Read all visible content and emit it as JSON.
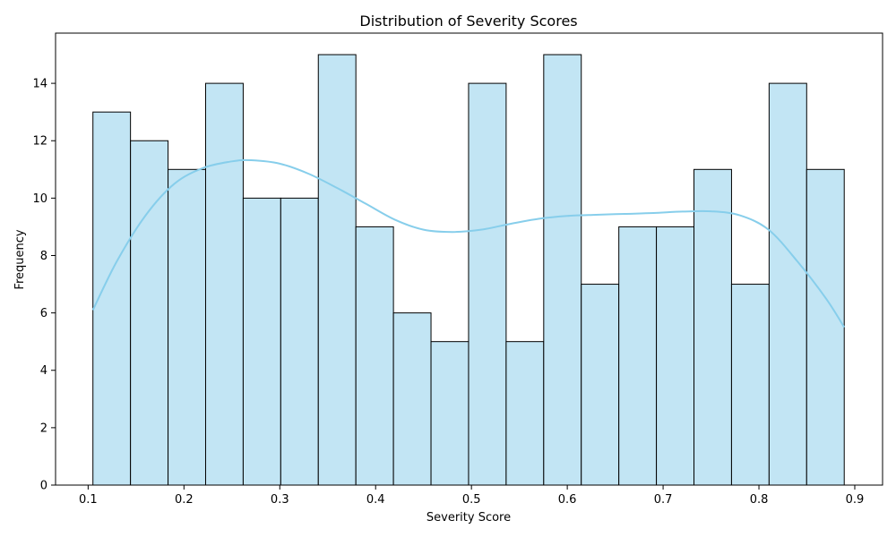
{
  "chart_data": {
    "type": "histogram",
    "title": "Distribution of Severity Scores",
    "xlabel": "Severity Score",
    "ylabel": "Frequency",
    "xlim": [
      0.066,
      0.929
    ],
    "ylim": [
      0,
      15.75
    ],
    "x_ticks": [
      0.1,
      0.2,
      0.3,
      0.4,
      0.5,
      0.6,
      0.7,
      0.8,
      0.9
    ],
    "y_ticks": [
      0,
      2,
      4,
      6,
      8,
      10,
      12,
      14
    ],
    "bin_edges": [
      0.105,
      0.1442,
      0.1834,
      0.2226,
      0.2618,
      0.301,
      0.3402,
      0.3794,
      0.4186,
      0.4578,
      0.497,
      0.5362,
      0.5754,
      0.6146,
      0.6538,
      0.693,
      0.7322,
      0.7714,
      0.8106,
      0.8498,
      0.889
    ],
    "counts": [
      13,
      12,
      11,
      14,
      10,
      10,
      15,
      9,
      6,
      5,
      14,
      5,
      15,
      7,
      9,
      9,
      11,
      7,
      14,
      11
    ],
    "kde": {
      "x": [
        0.105,
        0.13,
        0.16,
        0.19,
        0.22,
        0.25,
        0.27,
        0.3,
        0.33,
        0.36,
        0.39,
        0.42,
        0.45,
        0.48,
        0.51,
        0.54,
        0.57,
        0.6,
        0.63,
        0.66,
        0.69,
        0.72,
        0.75,
        0.78,
        0.81,
        0.84,
        0.87,
        0.889
      ],
      "y": [
        6.1,
        7.8,
        9.4,
        10.5,
        11.05,
        11.28,
        11.32,
        11.2,
        10.85,
        10.35,
        9.8,
        9.25,
        8.9,
        8.82,
        8.9,
        9.1,
        9.28,
        9.38,
        9.42,
        9.45,
        9.48,
        9.53,
        9.54,
        9.4,
        8.9,
        7.8,
        6.5,
        5.5
      ]
    },
    "colors": {
      "bar_fill": "#c2e5f4",
      "bar_edge": "#000000",
      "kde_line": "#87ceeb"
    }
  }
}
